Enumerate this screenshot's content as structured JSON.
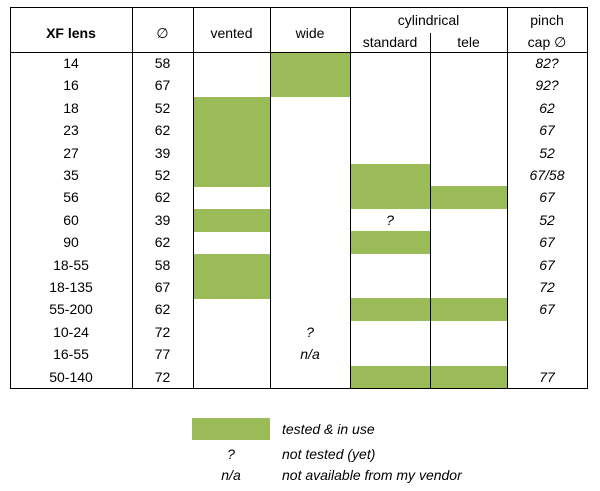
{
  "header": {
    "lens": "XF lens",
    "diameter": "∅",
    "vented": "vented",
    "wide": "wide",
    "cylindrical": "cylindrical",
    "standard": "standard",
    "tele": "tele",
    "pinch_line1": "pinch",
    "pinch_line2": "cap ∅"
  },
  "rows": [
    {
      "lens": "14",
      "dia": "58",
      "vented": false,
      "wide": true,
      "wide_text": "",
      "standard": false,
      "standard_text": "",
      "tele": false,
      "pinch": "82?"
    },
    {
      "lens": "16",
      "dia": "67",
      "vented": false,
      "wide": true,
      "wide_text": "",
      "standard": false,
      "standard_text": "",
      "tele": false,
      "pinch": "92?"
    },
    {
      "lens": "18",
      "dia": "52",
      "vented": true,
      "wide": false,
      "wide_text": "",
      "standard": false,
      "standard_text": "",
      "tele": false,
      "pinch": "62"
    },
    {
      "lens": "23",
      "dia": "62",
      "vented": true,
      "wide": false,
      "wide_text": "",
      "standard": false,
      "standard_text": "",
      "tele": false,
      "pinch": "67"
    },
    {
      "lens": "27",
      "dia": "39",
      "vented": true,
      "wide": false,
      "wide_text": "",
      "standard": false,
      "standard_text": "",
      "tele": false,
      "pinch": "52"
    },
    {
      "lens": "35",
      "dia": "52",
      "vented": true,
      "wide": false,
      "wide_text": "",
      "standard": true,
      "standard_text": "",
      "tele": false,
      "pinch": "67/58"
    },
    {
      "lens": "56",
      "dia": "62",
      "vented": false,
      "wide": false,
      "wide_text": "",
      "standard": true,
      "standard_text": "",
      "tele": true,
      "pinch": "67"
    },
    {
      "lens": "60",
      "dia": "39",
      "vented": true,
      "wide": false,
      "wide_text": "",
      "standard": false,
      "standard_text": "?",
      "tele": false,
      "pinch": "52"
    },
    {
      "lens": "90",
      "dia": "62",
      "vented": false,
      "wide": false,
      "wide_text": "",
      "standard": true,
      "standard_text": "",
      "tele": false,
      "pinch": "67"
    },
    {
      "lens": "18-55",
      "dia": "58",
      "vented": true,
      "wide": false,
      "wide_text": "",
      "standard": false,
      "standard_text": "",
      "tele": false,
      "pinch": "67"
    },
    {
      "lens": "18-135",
      "dia": "67",
      "vented": true,
      "wide": false,
      "wide_text": "",
      "standard": false,
      "standard_text": "",
      "tele": false,
      "pinch": "72"
    },
    {
      "lens": "55-200",
      "dia": "62",
      "vented": false,
      "wide": false,
      "wide_text": "",
      "standard": true,
      "standard_text": "",
      "tele": true,
      "pinch": "67"
    },
    {
      "lens": "10-24",
      "dia": "72",
      "vented": false,
      "wide": false,
      "wide_text": "?",
      "standard": false,
      "standard_text": "",
      "tele": false,
      "pinch": ""
    },
    {
      "lens": "16-55",
      "dia": "77",
      "vented": false,
      "wide": false,
      "wide_text": "n/a",
      "standard": false,
      "standard_text": "",
      "tele": false,
      "pinch": ""
    },
    {
      "lens": "50-140",
      "dia": "72",
      "vented": false,
      "wide": false,
      "wide_text": "",
      "standard": true,
      "standard_text": "",
      "tele": true,
      "pinch": "77"
    }
  ],
  "legend": {
    "tested": "tested & in use",
    "not_tested_symbol": "?",
    "not_tested": "not tested (yet)",
    "na_symbol": "n/a",
    "na": "not available from my vendor"
  },
  "colors": {
    "tested_fill": "#9bbb59",
    "border": "#000000"
  }
}
